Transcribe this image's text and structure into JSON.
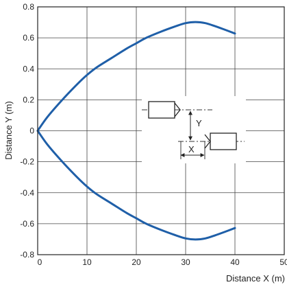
{
  "chart_data": {
    "type": "line",
    "xlabel": "Distance X (m)",
    "ylabel": "Distance Y (m)",
    "xlim": [
      0,
      50
    ],
    "ylim": [
      -0.8,
      0.8
    ],
    "x_ticks": [
      "0",
      "10",
      "20",
      "30",
      "40",
      "50"
    ],
    "y_ticks": [
      "0.8",
      "0.6",
      "0.4",
      "0.2",
      "0",
      "-0.2",
      "-0.4",
      "-0.6",
      "-0.8"
    ],
    "grid": true,
    "line_color": "#1f5fa8",
    "series": [
      {
        "x": [
          0,
          2,
          5,
          8,
          10,
          12,
          15,
          18,
          20,
          22,
          25,
          28,
          30,
          32,
          34,
          36,
          38,
          40
        ],
        "y": [
          0,
          0.09,
          0.2,
          0.3,
          0.36,
          0.41,
          0.47,
          0.53,
          0.565,
          0.6,
          0.64,
          0.675,
          0.695,
          0.702,
          0.695,
          0.675,
          0.652,
          0.628
        ]
      },
      {
        "x": [
          0,
          2,
          5,
          8,
          10,
          12,
          15,
          18,
          20,
          22,
          25,
          28,
          30,
          32,
          34,
          36,
          38,
          40
        ],
        "y": [
          0,
          -0.09,
          -0.2,
          -0.3,
          -0.36,
          -0.41,
          -0.47,
          -0.53,
          -0.565,
          -0.6,
          -0.64,
          -0.675,
          -0.695,
          -0.702,
          -0.695,
          -0.675,
          -0.652,
          -0.628
        ]
      }
    ],
    "inset": {
      "y_label": "Y",
      "x_label": "X"
    }
  }
}
